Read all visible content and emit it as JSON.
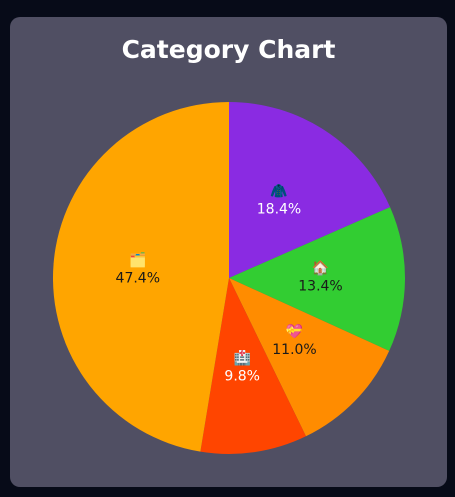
{
  "chart_data": {
    "type": "pie",
    "title": "Category Chart",
    "start_angle_deg": 0,
    "direction": "clockwise",
    "slices": [
      {
        "label": "18.4%",
        "icon": "🧥",
        "icon_name": "coat-icon",
        "value": 18.4,
        "color": "#8a2be2",
        "text_color": "#ffffff"
      },
      {
        "label": "13.4%",
        "icon": "🏠",
        "icon_name": "house-icon",
        "value": 13.4,
        "color": "#32cd32",
        "text_color": "#1a1a1a"
      },
      {
        "label": "11.0%",
        "icon": "💝",
        "icon_name": "heart-gift-icon",
        "value": 11.0,
        "color": "#ff8c00",
        "text_color": "#1a1a1a"
      },
      {
        "label": "9.8%",
        "icon": "🏥",
        "icon_name": "hospital-icon",
        "value": 9.8,
        "color": "#ff4500",
        "text_color": "#ffffff"
      },
      {
        "label": "47.4%",
        "icon": "🗂️",
        "icon_name": "folder-icon",
        "value": 47.4,
        "color": "#ffa500",
        "text_color": "#1a1a1a"
      }
    ]
  },
  "colors": {
    "background": "#070b18",
    "card": "#504f63",
    "title": "#ffffff"
  }
}
